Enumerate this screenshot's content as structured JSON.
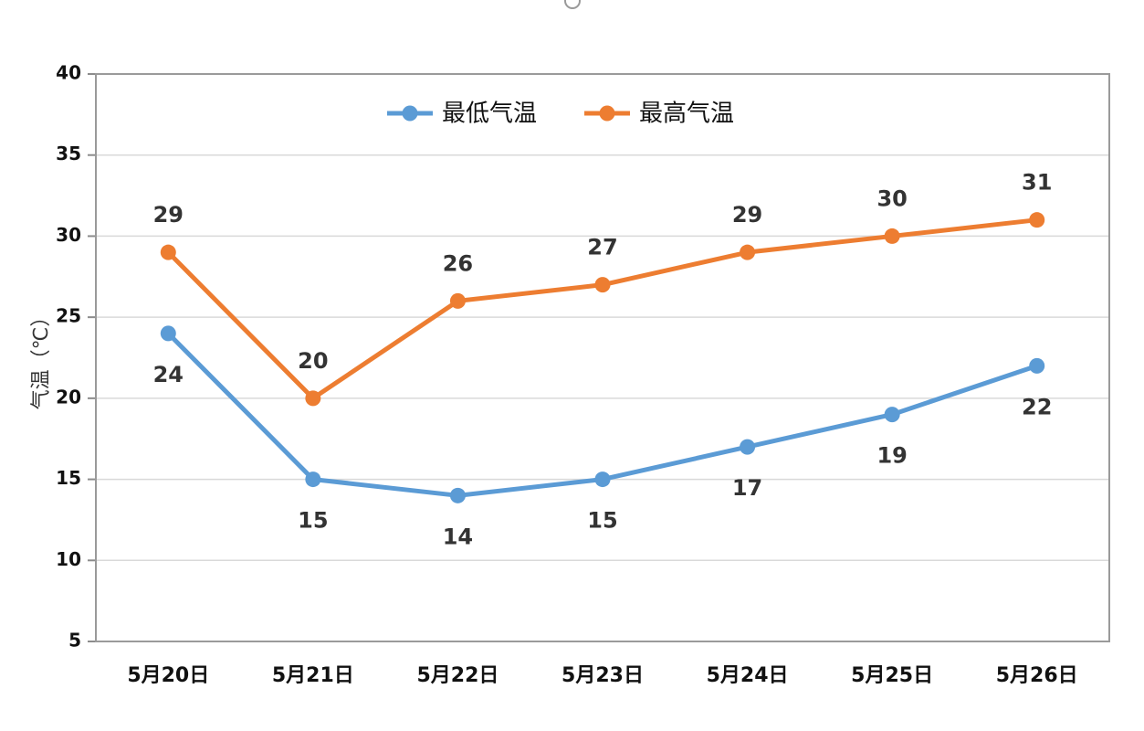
{
  "chart_data": {
    "type": "line",
    "title": "",
    "xlabel": "",
    "ylabel": "气温（℃）",
    "categories": [
      "5月20日",
      "5月21日",
      "5月22日",
      "5月23日",
      "5月24日",
      "5月25日",
      "5月26日"
    ],
    "series": [
      {
        "name": "最低气温",
        "color": "#5B9BD5",
        "values": [
          24,
          15,
          14,
          15,
          17,
          19,
          22
        ],
        "label_position": "below"
      },
      {
        "name": "最高气温",
        "color": "#ED7D31",
        "values": [
          29,
          20,
          26,
          27,
          29,
          30,
          31
        ],
        "label_position": "above"
      }
    ],
    "ylim": [
      5,
      40
    ],
    "yticks": [
      5,
      10,
      15,
      20,
      25,
      30,
      35,
      40
    ],
    "grid": {
      "horizontal": true,
      "vertical": false,
      "color": "#d9d9d9"
    },
    "legend": {
      "position": "top-inside",
      "entries": [
        "最低气温",
        "最高气温"
      ]
    },
    "data_labels": true
  }
}
